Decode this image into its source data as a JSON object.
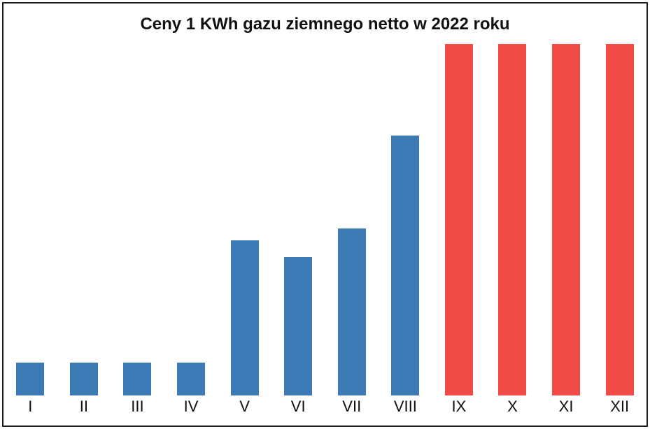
{
  "colors": {
    "blue": "#3d79b5",
    "red": "#f24b45",
    "frame": "#1c1c1c",
    "background": "#ffffff",
    "text": "#111111"
  },
  "chart_data": {
    "type": "bar",
    "title": "Ceny 1 KWh gazu ziemnego netto w 2022 roku",
    "categories": [
      "I",
      "II",
      "III",
      "IV",
      "V",
      "VI",
      "VII",
      "VIII",
      "IX",
      "X",
      "XI",
      "XII"
    ],
    "values_percent_of_max": [
      9.3,
      9.3,
      9.3,
      9.3,
      44.1,
      39.4,
      47.5,
      74.0,
      100,
      100,
      100,
      100
    ],
    "bar_colors": [
      "blue",
      "blue",
      "blue",
      "blue",
      "blue",
      "blue",
      "blue",
      "blue",
      "red",
      "red",
      "red",
      "red"
    ],
    "xlabel": "",
    "ylabel": "",
    "ylim": [
      0,
      100
    ],
    "axis_ticks_visible": false,
    "grid": "off",
    "legend": "none",
    "note": "No numeric y-axis is shown in the image; values are bar heights measured relative to the tallest bars (IX-XII) = 100"
  }
}
